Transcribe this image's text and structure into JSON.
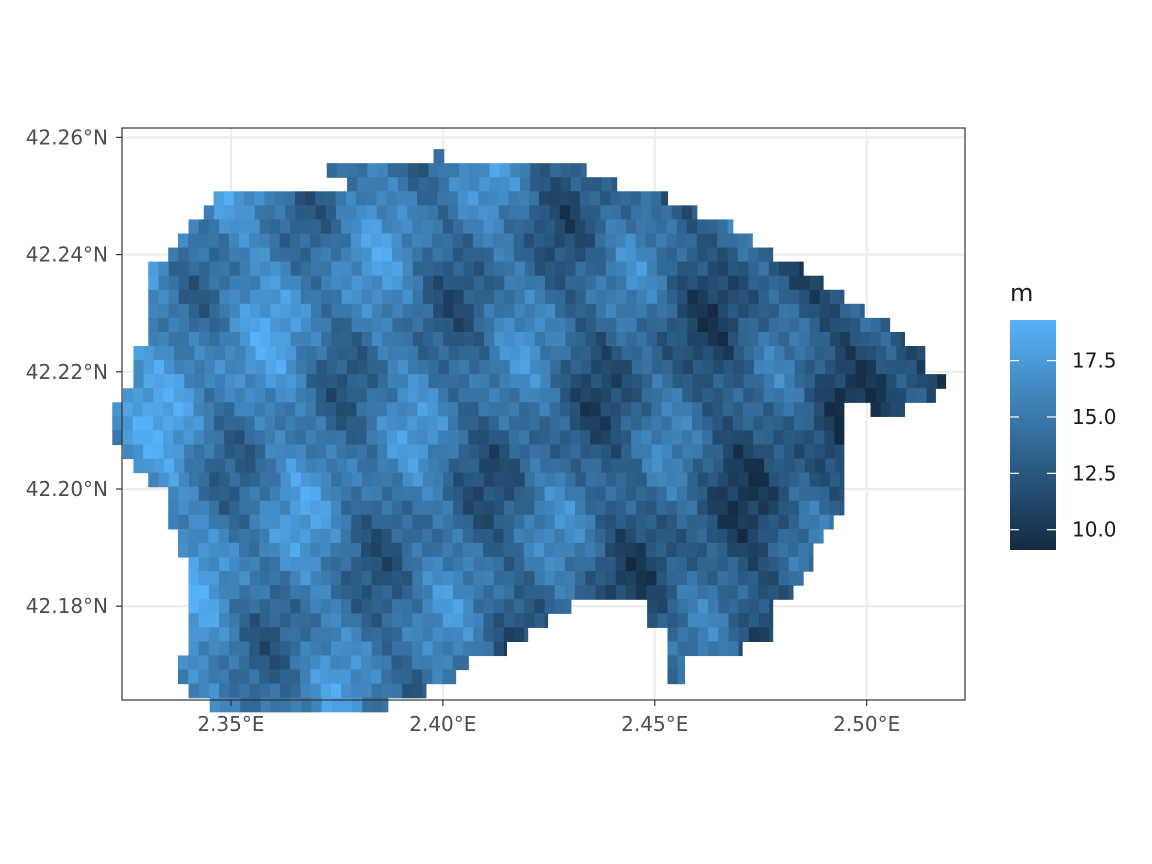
{
  "chart_data": {
    "type": "heatmap",
    "title": "",
    "xlabel": "",
    "ylabel": "",
    "x_ticks": [
      {
        "value": 2.35,
        "label": "2.35°E"
      },
      {
        "value": 2.4,
        "label": "2.40°E"
      },
      {
        "value": 2.45,
        "label": "2.45°E"
      },
      {
        "value": 2.5,
        "label": "2.50°E"
      }
    ],
    "y_ticks": [
      {
        "value": 42.18,
        "label": "42.18°N"
      },
      {
        "value": 42.2,
        "label": "42.20°N"
      },
      {
        "value": 42.22,
        "label": "42.22°N"
      },
      {
        "value": 42.24,
        "label": "42.24°N"
      },
      {
        "value": 42.26,
        "label": "42.26°N"
      }
    ],
    "xlim": [
      2.3243,
      2.5232
    ],
    "ylim": [
      42.164,
      42.2616
    ],
    "grid": true,
    "legend": {
      "title": "m",
      "position": "right",
      "range": [
        9.1,
        19.3
      ],
      "ticks": [
        {
          "value": 10.0,
          "label": "10.0"
        },
        {
          "value": 12.5,
          "label": "12.5"
        },
        {
          "value": 15.0,
          "label": "15.0"
        },
        {
          "value": 17.5,
          "label": "17.5"
        }
      ],
      "low_color": "#132B43",
      "high_color": "#56B1F7"
    },
    "raster": {
      "resolution_deg": 0.0024,
      "rows": [
        {
          "lat": 42.2568,
          "spans": [
            [
              2.3978,
              2.4002
            ]
          ]
        },
        {
          "lat": 42.2544,
          "spans": [
            [
              2.3726,
              2.4338
            ]
          ]
        },
        {
          "lat": 42.252,
          "spans": [
            [
              2.3774,
              2.441
            ]
          ]
        },
        {
          "lat": 42.2496,
          "spans": [
            [
              2.3459,
              2.453
            ]
          ]
        },
        {
          "lat": 42.2472,
          "spans": [
            [
              2.3436,
              2.4599
            ]
          ]
        },
        {
          "lat": 42.2448,
          "spans": [
            [
              2.34,
              2.4684
            ]
          ]
        },
        {
          "lat": 42.2424,
          "spans": [
            [
              2.3375,
              2.473
            ]
          ]
        },
        {
          "lat": 42.24,
          "spans": [
            [
              2.3352,
              2.4778
            ]
          ]
        },
        {
          "lat": 42.2376,
          "spans": [
            [
              2.3305,
              2.485
            ]
          ]
        },
        {
          "lat": 42.2352,
          "spans": [
            [
              2.3305,
              2.4897
            ]
          ]
        },
        {
          "lat": 42.2328,
          "spans": [
            [
              2.3305,
              2.4946
            ]
          ]
        },
        {
          "lat": 42.2304,
          "spans": [
            [
              2.3305,
              2.4994
            ]
          ]
        },
        {
          "lat": 42.228,
          "spans": [
            [
              2.3305,
              2.5054
            ]
          ]
        },
        {
          "lat": 42.2256,
          "spans": [
            [
              2.3305,
              2.5089
            ]
          ]
        },
        {
          "lat": 42.2232,
          "spans": [
            [
              2.327,
              2.5137
            ]
          ]
        },
        {
          "lat": 42.2208,
          "spans": [
            [
              2.327,
              2.5137
            ]
          ]
        },
        {
          "lat": 42.2184,
          "spans": [
            [
              2.327,
              2.5186
            ]
          ]
        },
        {
          "lat": 42.216,
          "spans": [
            [
              2.3245,
              2.5162
            ]
          ]
        },
        {
          "lat": 42.2136,
          "spans": [
            [
              2.322,
              2.4946
            ],
            [
              2.5009,
              2.5089
            ]
          ]
        },
        {
          "lat": 42.2112,
          "spans": [
            [
              2.322,
              2.4946
            ]
          ]
        },
        {
          "lat": 42.2088,
          "spans": [
            [
              2.322,
              2.4946
            ]
          ]
        },
        {
          "lat": 42.2064,
          "spans": [
            [
              2.3245,
              2.4946
            ]
          ]
        },
        {
          "lat": 42.204,
          "spans": [
            [
              2.327,
              2.4946
            ]
          ]
        },
        {
          "lat": 42.2016,
          "spans": [
            [
              2.3305,
              2.4946
            ]
          ]
        },
        {
          "lat": 42.1992,
          "spans": [
            [
              2.3352,
              2.4946
            ]
          ]
        },
        {
          "lat": 42.1968,
          "spans": [
            [
              2.3352,
              2.4946
            ]
          ]
        },
        {
          "lat": 42.1944,
          "spans": [
            [
              2.3352,
              2.4921
            ]
          ]
        },
        {
          "lat": 42.192,
          "spans": [
            [
              2.3375,
              2.4897
            ]
          ]
        },
        {
          "lat": 42.1896,
          "spans": [
            [
              2.3375,
              2.4873
            ]
          ]
        },
        {
          "lat": 42.1872,
          "spans": [
            [
              2.34,
              2.4873
            ]
          ]
        },
        {
          "lat": 42.1848,
          "spans": [
            [
              2.34,
              2.485
            ]
          ]
        },
        {
          "lat": 42.1824,
          "spans": [
            [
              2.34,
              2.4826
            ]
          ]
        },
        {
          "lat": 42.18,
          "spans": [
            [
              2.34,
              2.4302
            ],
            [
              2.4482,
              2.4778
            ]
          ]
        },
        {
          "lat": 42.1776,
          "spans": [
            [
              2.34,
              2.4247
            ],
            [
              2.4482,
              2.4778
            ]
          ]
        },
        {
          "lat": 42.1752,
          "spans": [
            [
              2.34,
              2.42
            ],
            [
              2.453,
              2.4778
            ]
          ]
        },
        {
          "lat": 42.1728,
          "spans": [
            [
              2.34,
              2.415
            ],
            [
              2.453,
              2.4706
            ]
          ]
        },
        {
          "lat": 42.1704,
          "spans": [
            [
              2.3375,
              2.406
            ],
            [
              2.453,
              2.457
            ]
          ]
        },
        {
          "lat": 42.168,
          "spans": [
            [
              2.3375,
              2.403
            ],
            [
              2.453,
              2.457
            ]
          ]
        },
        {
          "lat": 42.1656,
          "spans": [
            [
              2.34,
              2.396
            ]
          ]
        },
        {
          "lat": 42.1632,
          "spans": [
            [
              2.345,
              2.387
            ]
          ]
        }
      ]
    }
  }
}
